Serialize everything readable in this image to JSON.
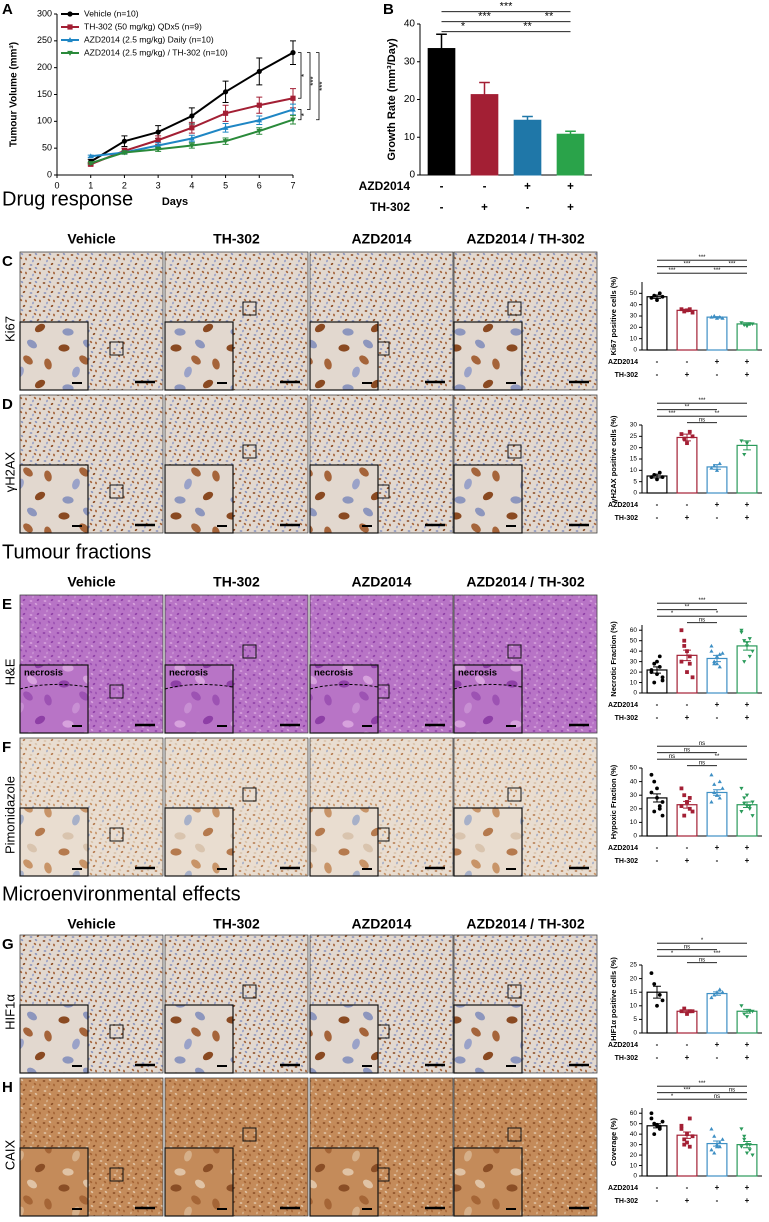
{
  "panel_letters": [
    "A",
    "B",
    "C",
    "D",
    "E",
    "F",
    "G",
    "H"
  ],
  "sections": [
    "Drug response",
    "Tumour fractions",
    "Microenvironmental effects"
  ],
  "columns": [
    "Vehicle",
    "TH-302",
    "AZD2014",
    "AZD2014 / TH-302"
  ],
  "rows": [
    {
      "label": "Ki67"
    },
    {
      "label": "γH2AX"
    },
    {
      "label": "H&E",
      "annotations": [
        "necrosis",
        "necrosis",
        "necrosis",
        "necrosis"
      ]
    },
    {
      "label": "Pimonidazole"
    },
    {
      "label": "HIF1α"
    },
    {
      "label": "CAIX"
    }
  ],
  "chart_data": [
    {
      "type": "line",
      "xlabel": "Days",
      "ylabel": "Tumour Volume (mm³)",
      "x": [
        1,
        2,
        3,
        4,
        5,
        6,
        7
      ],
      "xlim": [
        0,
        7
      ],
      "xticks": [
        0,
        1,
        2,
        3,
        4,
        5,
        6,
        7
      ],
      "ylim": [
        0,
        300
      ],
      "yticks": [
        0,
        50,
        100,
        150,
        200,
        250,
        300
      ],
      "series": [
        {
          "name": "Vehicle (n=10)",
          "color": "#000000",
          "values": [
            25,
            63,
            80,
            110,
            155,
            193,
            228
          ],
          "errors": [
            4,
            10,
            12,
            15,
            20,
            25,
            22
          ]
        },
        {
          "name": "TH-302 (50 mg/kg) QDx5 (n=9)",
          "color": "#a31f34",
          "values": [
            20,
            45,
            65,
            88,
            115,
            130,
            143
          ],
          "errors": [
            3,
            5,
            8,
            10,
            15,
            15,
            18
          ]
        },
        {
          "name": "AZD2014 (2.5 mg/kg) Daily (n=10)",
          "color": "#1f86c4",
          "values": [
            35,
            42,
            55,
            68,
            88,
            102,
            122
          ],
          "errors": [
            2,
            3,
            5,
            6,
            8,
            8,
            10
          ]
        },
        {
          "name": "AZD2014 (2.5 mg/kg) / TH-302 (n=10)",
          "color": "#2a8a3a",
          "values": [
            22,
            42,
            48,
            55,
            63,
            82,
            103
          ],
          "errors": [
            2,
            3,
            4,
            5,
            6,
            6,
            8
          ]
        }
      ],
      "comparisons": [
        {
          "from": 0,
          "to": 1,
          "label": "*"
        },
        {
          "from": 0,
          "to": 2,
          "label": "***"
        },
        {
          "from": 0,
          "to": 3,
          "label": "***"
        },
        {
          "from": 2,
          "to": 3,
          "label": "*"
        }
      ]
    },
    {
      "type": "bar",
      "ylabel": "Growth Rate (mm³/Day)",
      "ylim": [
        0,
        40
      ],
      "yticks": [
        0,
        10,
        20,
        30,
        40
      ],
      "values": [
        33.5,
        21.3,
        14.5,
        10.8
      ],
      "errors": [
        3.8,
        3.2,
        1,
        0.8
      ],
      "colors": [
        "#000000",
        "#a31f34",
        "#1f77a8",
        "#2aa34a"
      ],
      "factors": [
        {
          "name": "AZD2014",
          "values": [
            "-",
            "-",
            "+",
            "+"
          ]
        },
        {
          "name": "TH-302",
          "values": [
            "-",
            "+",
            "-",
            "+"
          ]
        }
      ],
      "comparisons": [
        {
          "from": 0,
          "to": 3,
          "label": "***"
        },
        {
          "from": 0,
          "to": 2,
          "label": "***"
        },
        {
          "from": 2,
          "to": 3,
          "label": "**"
        },
        {
          "from": 0,
          "to": 1,
          "label": "*"
        },
        {
          "from": 1,
          "to": 3,
          "label": "**"
        }
      ]
    },
    {
      "type": "dot_bar",
      "ylabel": "Ki67 positive cells (%)",
      "ylim": [
        0,
        60
      ],
      "yticks": [
        0,
        10,
        20,
        30,
        40,
        50
      ],
      "values": [
        47,
        35,
        29,
        23
      ],
      "errors": [
        1.5,
        1,
        0.5,
        1
      ],
      "colors": [
        "#000000",
        "#a31f34",
        "#3e8fc4",
        "#2a9a5a"
      ],
      "points": [
        [
          46,
          48,
          44,
          50,
          47
        ],
        [
          36,
          34,
          35,
          36,
          33
        ],
        [
          29,
          30,
          28,
          29,
          28
        ],
        [
          24,
          22,
          21,
          23,
          23
        ]
      ],
      "factors": [
        {
          "name": "AZD2014",
          "values": [
            "-",
            "-",
            "+",
            "+"
          ]
        },
        {
          "name": "TH-302",
          "values": [
            "-",
            "+",
            "-",
            "+"
          ]
        }
      ],
      "comparisons": [
        {
          "from": 0,
          "to": 3,
          "label": "***"
        },
        {
          "from": 0,
          "to": 2,
          "label": "***"
        },
        {
          "from": 1,
          "to": 3,
          "label": "***"
        },
        {
          "from": 0,
          "to": 1,
          "label": "***"
        },
        {
          "from": 2,
          "to": 3,
          "label": "***"
        }
      ]
    },
    {
      "type": "dot_bar",
      "ylabel": "γH2AX positive cells (%)",
      "ylim": [
        0,
        30
      ],
      "yticks": [
        0,
        5,
        10,
        15,
        20,
        25,
        30
      ],
      "values": [
        7.5,
        24.5,
        11.5,
        21
      ],
      "errors": [
        0.8,
        1.5,
        1,
        2
      ],
      "colors": [
        "#000000",
        "#a31f34",
        "#3e8fc4",
        "#2a9a5a"
      ],
      "points": [
        [
          7,
          8,
          6,
          9,
          7
        ],
        [
          26,
          24,
          22,
          27,
          25
        ],
        [
          11,
          12,
          10,
          13
        ],
        [
          23,
          17,
          22
        ]
      ],
      "factors": [
        {
          "name": "AZD2014",
          "values": [
            "-",
            "-",
            "+",
            "+"
          ]
        },
        {
          "name": "TH-302",
          "values": [
            "-",
            "+",
            "-",
            "+"
          ]
        }
      ],
      "comparisons": [
        {
          "from": 0,
          "to": 3,
          "label": "***"
        },
        {
          "from": 0,
          "to": 2,
          "label": "**"
        },
        {
          "from": 1,
          "to": 3,
          "label": "**"
        },
        {
          "from": 0,
          "to": 1,
          "label": "***"
        },
        {
          "from": 1,
          "to": 2,
          "label": "ns"
        }
      ]
    },
    {
      "type": "dot_bar",
      "ylabel": "Necrotic Fraction (%)",
      "ylim": [
        0,
        65
      ],
      "yticks": [
        0,
        10,
        20,
        30,
        40,
        50,
        60
      ],
      "values": [
        22,
        36,
        33,
        45
      ],
      "errors": [
        3,
        5,
        3,
        4
      ],
      "colors": [
        "#000000",
        "#a31f34",
        "#3e8fc4",
        "#2a9a5a"
      ],
      "points": [
        [
          22,
          10,
          30,
          25,
          15,
          20,
          28,
          18,
          35,
          12
        ],
        [
          60,
          50,
          40,
          28,
          15,
          30,
          45,
          20,
          35
        ],
        [
          40,
          28,
          35,
          25,
          38,
          45,
          30,
          28,
          37
        ],
        [
          58,
          50,
          45,
          35,
          40,
          60,
          30,
          48,
          52
        ]
      ],
      "factors": [
        {
          "name": "AZD2014",
          "values": [
            "-",
            "-",
            "+",
            "+"
          ]
        },
        {
          "name": "TH-302",
          "values": [
            "-",
            "+",
            "-",
            "+"
          ]
        }
      ],
      "comparisons": [
        {
          "from": 0,
          "to": 3,
          "label": "***"
        },
        {
          "from": 0,
          "to": 2,
          "label": "**"
        },
        {
          "from": 1,
          "to": 3,
          "label": "*"
        },
        {
          "from": 0,
          "to": 1,
          "label": "*"
        },
        {
          "from": 1,
          "to": 2,
          "label": "ns"
        }
      ]
    },
    {
      "type": "dot_bar",
      "ylabel": "Hypoxic Fraction (%)",
      "ylim": [
        0,
        50
      ],
      "yticks": [
        0,
        10,
        20,
        30,
        40,
        50
      ],
      "values": [
        28,
        23,
        32,
        23
      ],
      "errors": [
        3,
        2.5,
        2,
        2
      ],
      "colors": [
        "#000000",
        "#a31f34",
        "#3e8fc4",
        "#2a9a5a"
      ],
      "points": [
        [
          45,
          40,
          28,
          20,
          25,
          32,
          18,
          35,
          22,
          15
        ],
        [
          35,
          30,
          25,
          20,
          18,
          22,
          15,
          25,
          28
        ],
        [
          45,
          38,
          30,
          28,
          35,
          25,
          32,
          30,
          40
        ],
        [
          35,
          28,
          22,
          20,
          25,
          18,
          24,
          30,
          22,
          15
        ]
      ],
      "factors": [
        {
          "name": "AZD2014",
          "values": [
            "-",
            "-",
            "+",
            "+"
          ]
        },
        {
          "name": "TH-302",
          "values": [
            "-",
            "+",
            "-",
            "+"
          ]
        }
      ],
      "comparisons": [
        {
          "from": 0,
          "to": 3,
          "label": "ns"
        },
        {
          "from": 0,
          "to": 2,
          "label": "ns"
        },
        {
          "from": 1,
          "to": 3,
          "label": "**"
        },
        {
          "from": 0,
          "to": 1,
          "label": "ns"
        },
        {
          "from": 1,
          "to": 2,
          "label": "ns"
        }
      ]
    },
    {
      "type": "dot_bar",
      "ylabel": "HIF1α positive cells (%)",
      "ylim": [
        0,
        25
      ],
      "yticks": [
        0,
        5,
        10,
        15,
        20,
        25
      ],
      "values": [
        15,
        8,
        14.5,
        8
      ],
      "errors": [
        2.2,
        0.5,
        0.6,
        0.7
      ],
      "colors": [
        "#000000",
        "#a31f34",
        "#3e8fc4",
        "#2a9a5a"
      ],
      "points": [
        [
          22,
          18,
          10,
          14,
          12
        ],
        [
          8,
          9,
          7,
          8,
          8
        ],
        [
          13,
          14,
          15,
          16,
          15
        ],
        [
          10,
          7,
          6,
          8,
          8
        ]
      ],
      "factors": [
        {
          "name": "AZD2014",
          "values": [
            "-",
            "-",
            "+",
            "+"
          ]
        },
        {
          "name": "TH-302",
          "values": [
            "-",
            "+",
            "-",
            "+"
          ]
        }
      ],
      "comparisons": [
        {
          "from": 0,
          "to": 3,
          "label": "*"
        },
        {
          "from": 0,
          "to": 2,
          "label": "ns"
        },
        {
          "from": 1,
          "to": 3,
          "label": "***"
        },
        {
          "from": 0,
          "to": 1,
          "label": "*"
        },
        {
          "from": 1,
          "to": 2,
          "label": "ns"
        }
      ]
    },
    {
      "type": "dot_bar",
      "ylabel": "Coverage (%)",
      "ylim": [
        0,
        65
      ],
      "yticks": [
        0,
        10,
        20,
        30,
        40,
        50,
        60
      ],
      "values": [
        48,
        39,
        31,
        30
      ],
      "errors": [
        2,
        3,
        2.5,
        3
      ],
      "colors": [
        "#000000",
        "#a31f34",
        "#3e8fc4",
        "#2a9a5a"
      ],
      "points": [
        [
          60,
          50,
          48,
          45,
          52,
          55,
          40,
          49,
          47
        ],
        [
          45,
          30,
          40,
          55,
          38,
          48,
          35,
          32,
          28
        ],
        [
          45,
          38,
          30,
          28,
          35,
          25,
          22,
          28,
          32
        ],
        [
          45,
          38,
          30,
          25,
          20,
          28,
          35,
          22,
          30
        ]
      ],
      "factors": [
        {
          "name": "AZD2014",
          "values": [
            "-",
            "-",
            "+",
            "+"
          ]
        },
        {
          "name": "TH-302",
          "values": [
            "-",
            "+",
            "-",
            "+"
          ]
        }
      ],
      "comparisons": [
        {
          "from": 0,
          "to": 3,
          "label": "***"
        },
        {
          "from": 0,
          "to": 2,
          "label": "***"
        },
        {
          "from": 2,
          "to": 3,
          "label": "ns"
        },
        {
          "from": 0,
          "to": 1,
          "label": "*"
        },
        {
          "from": 1,
          "to": 3,
          "label": "ns"
        }
      ]
    }
  ]
}
